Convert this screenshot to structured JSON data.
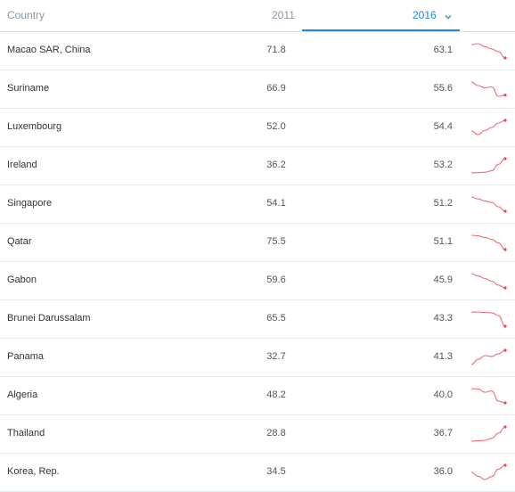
{
  "header": {
    "country_label": "Country",
    "year1_label": "2011",
    "year2_label": "2016",
    "sort_icon": "chevron-down-icon"
  },
  "colors": {
    "accent": "#1e88e5",
    "sparkline": "#f06b7a"
  },
  "rows": [
    {
      "country": "Macao SAR, China",
      "v2011": "71.8",
      "v2016": "63.1",
      "trend": [
        71.8,
        72.4,
        70.5,
        68.9,
        67.2,
        63.1
      ]
    },
    {
      "country": "Suriname",
      "v2011": "66.9",
      "v2016": "55.6",
      "trend": [
        66.9,
        63.8,
        61.9,
        62.7,
        54.6,
        55.6
      ]
    },
    {
      "country": "Luxembourg",
      "v2011": "52.0",
      "v2016": "54.4",
      "trend": [
        52.0,
        51.2,
        52.1,
        52.8,
        53.8,
        54.4
      ]
    },
    {
      "country": "Ireland",
      "v2011": "36.2",
      "v2016": "53.2",
      "trend": [
        36.2,
        36.5,
        37.0,
        38.8,
        46.5,
        53.2
      ]
    },
    {
      "country": "Singapore",
      "v2011": "54.1",
      "v2016": "51.2",
      "trend": [
        54.1,
        53.7,
        53.3,
        53.0,
        52.1,
        51.2
      ]
    },
    {
      "country": "Qatar",
      "v2011": "75.5",
      "v2016": "51.1",
      "trend": [
        75.5,
        74.8,
        71.9,
        68.6,
        62.4,
        51.1
      ]
    },
    {
      "country": "Gabon",
      "v2011": "59.6",
      "v2016": "45.9",
      "trend": [
        59.6,
        57.4,
        54.9,
        52.3,
        48.6,
        45.9
      ]
    },
    {
      "country": "Brunei Darussalam",
      "v2011": "65.5",
      "v2016": "43.3",
      "trend": [
        65.5,
        65.8,
        65.0,
        64.6,
        60.2,
        43.3
      ]
    },
    {
      "country": "Panama",
      "v2011": "32.7",
      "v2016": "41.3",
      "trend": [
        32.7,
        35.8,
        38.1,
        37.6,
        39.2,
        41.3
      ]
    },
    {
      "country": "Algeria",
      "v2011": "48.2",
      "v2016": "40.0",
      "trend": [
        48.2,
        48.0,
        46.1,
        46.9,
        41.0,
        40.0
      ]
    },
    {
      "country": "Thailand",
      "v2011": "28.8",
      "v2016": "36.7",
      "trend": [
        28.8,
        29.0,
        29.3,
        30.4,
        33.2,
        36.7
      ]
    },
    {
      "country": "Korea, Rep.",
      "v2011": "34.5",
      "v2016": "36.0",
      "trend": [
        34.5,
        33.7,
        33.0,
        33.6,
        35.2,
        36.0
      ]
    }
  ]
}
